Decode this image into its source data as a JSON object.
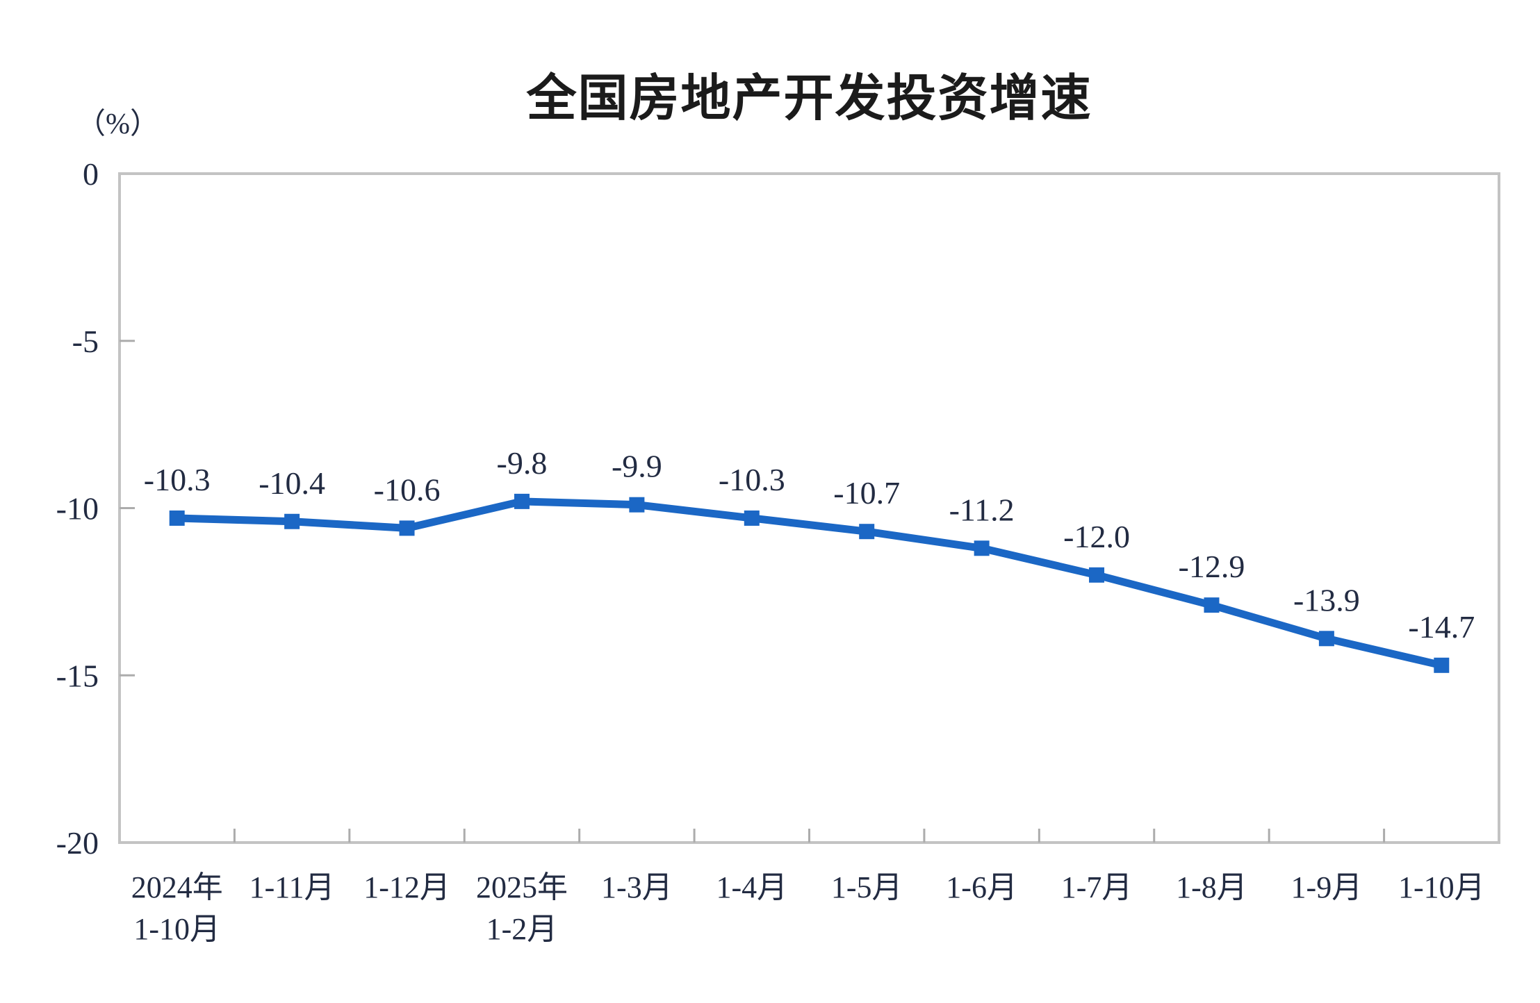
{
  "chart": {
    "title": "全国房地产开发投资增速",
    "unit_label": "（%）"
  },
  "chart_data": {
    "type": "line",
    "title": "全国房地产开发投资增速",
    "xlabel": "",
    "ylabel": "（%）",
    "categories": [
      "2024年\n1-10月",
      "1-11月",
      "1-12月",
      "2025年\n1-2月",
      "1-3月",
      "1-4月",
      "1-5月",
      "1-6月",
      "1-7月",
      "1-8月",
      "1-9月",
      "1-10月"
    ],
    "values": [
      -10.3,
      -10.4,
      -10.6,
      -9.8,
      -9.9,
      -10.3,
      -10.7,
      -11.2,
      -12.0,
      -12.9,
      -13.9,
      -14.7
    ],
    "data_labels": [
      "-10.3",
      "-10.4",
      "-10.6",
      "-9.8",
      "-9.9",
      "-10.3",
      "-10.7",
      "-11.2",
      "-12.0",
      "-12.9",
      "-13.9",
      "-14.7"
    ],
    "ylim": [
      -20,
      0
    ],
    "yticks": [
      {
        "label": "0",
        "value": 0
      },
      {
        "label": "-5",
        "value": -5
      },
      {
        "label": "-10",
        "value": -10
      },
      {
        "label": "-15",
        "value": -15
      },
      {
        "label": "-20",
        "value": -20
      }
    ],
    "grid": false,
    "legend": false,
    "marker": "square",
    "colors": {
      "line": "#1B67C5",
      "marker": "#1B67C5",
      "frame": "#C3C3C3",
      "tick": "#ACACAC",
      "text": "#222B42",
      "title": "#1B1B1B"
    }
  }
}
